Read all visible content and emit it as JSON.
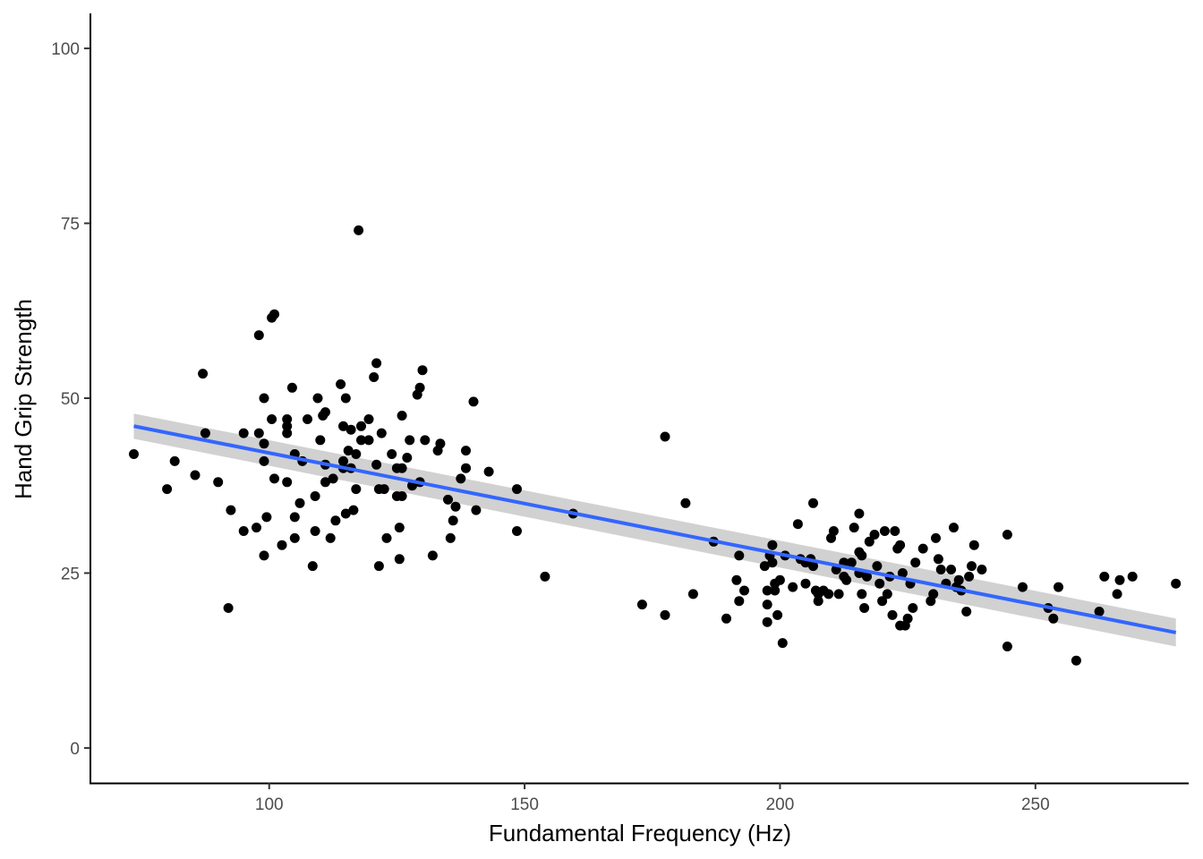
{
  "chart_data": {
    "type": "scatter",
    "title": "",
    "xlabel": "Fundamental Frequency (Hz)",
    "ylabel": "Hand Grip Strength",
    "xlim": [
      65,
      280
    ],
    "ylim": [
      -5,
      105
    ],
    "x_ticks": [
      100,
      150,
      200,
      250
    ],
    "y_ticks": [
      0,
      25,
      50,
      75,
      100
    ],
    "x_tick_labels": [
      "100",
      "150",
      "200",
      "250"
    ],
    "y_tick_labels": [
      "0",
      "25",
      "50",
      "75",
      "100"
    ],
    "grid": false,
    "legend": "none",
    "colors": {
      "points": "#000000",
      "fit_line": "#3366ff",
      "confidence_band": "#cccccc"
    },
    "points": [
      [
        73.5,
        42
      ],
      [
        80,
        37
      ],
      [
        81.5,
        41
      ],
      [
        85.5,
        39
      ],
      [
        87,
        53.5
      ],
      [
        87.5,
        45
      ],
      [
        90,
        38
      ],
      [
        92,
        20
      ],
      [
        92.5,
        34
      ],
      [
        95,
        31
      ],
      [
        95,
        45
      ],
      [
        97.5,
        31.5
      ],
      [
        98,
        45
      ],
      [
        98,
        59
      ],
      [
        99,
        43.5
      ],
      [
        99,
        41
      ],
      [
        99,
        27.5
      ],
      [
        99.5,
        33
      ],
      [
        99,
        50
      ],
      [
        100.5,
        47
      ],
      [
        100.5,
        61.5
      ],
      [
        101,
        62
      ],
      [
        101,
        38.5
      ],
      [
        102.5,
        29
      ],
      [
        103.5,
        47
      ],
      [
        103.5,
        46
      ],
      [
        103.5,
        45
      ],
      [
        103.5,
        38
      ],
      [
        104.5,
        51.5
      ],
      [
        105,
        42
      ],
      [
        105,
        33
      ],
      [
        105,
        30
      ],
      [
        106,
        35
      ],
      [
        106.5,
        41
      ],
      [
        107.5,
        47
      ],
      [
        108.5,
        26
      ],
      [
        109,
        36
      ],
      [
        109,
        31
      ],
      [
        109.5,
        50
      ],
      [
        110,
        44
      ],
      [
        110.5,
        47.5
      ],
      [
        111,
        48
      ],
      [
        111,
        40.5
      ],
      [
        111,
        38
      ],
      [
        112,
        30
      ],
      [
        112.5,
        38.5
      ],
      [
        113,
        32.5
      ],
      [
        114,
        52
      ],
      [
        114.5,
        46
      ],
      [
        114.5,
        41
      ],
      [
        114.5,
        40
      ],
      [
        115,
        50
      ],
      [
        115,
        33.5
      ],
      [
        115.5,
        42.5
      ],
      [
        116,
        45.5
      ],
      [
        116,
        40
      ],
      [
        116.5,
        34
      ],
      [
        117,
        42
      ],
      [
        117,
        37
      ],
      [
        117.5,
        74
      ],
      [
        118,
        46
      ],
      [
        118,
        44
      ],
      [
        119.5,
        47
      ],
      [
        119.5,
        44
      ],
      [
        120.5,
        53
      ],
      [
        121,
        55
      ],
      [
        121,
        40.5
      ],
      [
        121.5,
        26
      ],
      [
        121.5,
        37
      ],
      [
        122,
        45
      ],
      [
        122.5,
        37
      ],
      [
        123,
        30
      ],
      [
        124,
        42
      ],
      [
        125,
        36
      ],
      [
        125,
        40
      ],
      [
        125.5,
        31.5
      ],
      [
        125.5,
        27
      ],
      [
        126,
        40
      ],
      [
        126,
        36
      ],
      [
        126,
        47.5
      ],
      [
        127,
        41.5
      ],
      [
        127.5,
        44
      ],
      [
        128,
        37.5
      ],
      [
        129,
        50.5
      ],
      [
        129.5,
        51.5
      ],
      [
        129.5,
        38
      ],
      [
        130,
        54
      ],
      [
        130.5,
        44
      ],
      [
        132,
        27.5
      ],
      [
        133,
        42.5
      ],
      [
        133.5,
        43.5
      ],
      [
        135,
        35.5
      ],
      [
        135.5,
        30
      ],
      [
        136,
        32.5
      ],
      [
        136.5,
        34.5
      ],
      [
        137.5,
        38.5
      ],
      [
        138.5,
        42.5
      ],
      [
        138.5,
        40
      ],
      [
        140,
        49.5
      ],
      [
        140.5,
        34
      ],
      [
        143,
        39.5
      ],
      [
        148.5,
        37
      ],
      [
        148.5,
        31
      ],
      [
        154,
        24.5
      ],
      [
        159.5,
        33.5
      ],
      [
        173,
        20.5
      ],
      [
        177.5,
        19
      ],
      [
        177.5,
        44.5
      ],
      [
        181.5,
        35
      ],
      [
        183,
        22
      ],
      [
        187,
        29.5
      ],
      [
        189.5,
        18.5
      ],
      [
        191.5,
        24
      ],
      [
        192,
        27.5
      ],
      [
        192,
        21
      ],
      [
        193,
        22.5
      ],
      [
        197,
        26
      ],
      [
        197.5,
        18
      ],
      [
        197.5,
        20.5
      ],
      [
        197.5,
        22.5
      ],
      [
        198,
        27.5
      ],
      [
        198.5,
        29
      ],
      [
        198.5,
        26.5
      ],
      [
        199,
        23.5
      ],
      [
        199,
        22.5
      ],
      [
        199.5,
        19
      ],
      [
        200,
        24
      ],
      [
        200.5,
        15
      ],
      [
        201,
        27.5
      ],
      [
        202.5,
        23
      ],
      [
        203.5,
        32
      ],
      [
        204,
        27
      ],
      [
        205,
        26.5
      ],
      [
        205,
        23.5
      ],
      [
        206,
        27
      ],
      [
        206.5,
        26
      ],
      [
        206.5,
        35
      ],
      [
        207,
        22.5
      ],
      [
        207.5,
        22
      ],
      [
        207.5,
        21
      ],
      [
        208.5,
        22.5
      ],
      [
        209.5,
        22
      ],
      [
        210,
        30
      ],
      [
        210.5,
        31
      ],
      [
        211,
        25.5
      ],
      [
        211.5,
        22
      ],
      [
        212.5,
        26.5
      ],
      [
        212.5,
        24.5
      ],
      [
        213,
        24
      ],
      [
        214,
        26.5
      ],
      [
        214.5,
        31.5
      ],
      [
        215.5,
        33.5
      ],
      [
        215.5,
        28
      ],
      [
        215.5,
        25
      ],
      [
        216,
        27.5
      ],
      [
        216,
        22
      ],
      [
        216.5,
        20
      ],
      [
        217,
        24.5
      ],
      [
        217.5,
        29.5
      ],
      [
        218.5,
        30.5
      ],
      [
        219,
        26
      ],
      [
        219.5,
        23.5
      ],
      [
        220,
        21
      ],
      [
        220.5,
        31
      ],
      [
        221,
        22
      ],
      [
        221.5,
        24.5
      ],
      [
        222,
        19
      ],
      [
        222.5,
        31
      ],
      [
        223,
        28.5
      ],
      [
        223.5,
        29
      ],
      [
        223.5,
        17.5
      ],
      [
        224,
        25
      ],
      [
        224.5,
        17.5
      ],
      [
        225,
        18.5
      ],
      [
        225.5,
        23.5
      ],
      [
        226,
        20
      ],
      [
        226.5,
        26.5
      ],
      [
        228,
        28.5
      ],
      [
        229.5,
        21
      ],
      [
        230,
        22
      ],
      [
        230.5,
        30
      ],
      [
        231,
        27
      ],
      [
        231.5,
        25.5
      ],
      [
        232.5,
        23.5
      ],
      [
        233.5,
        25.5
      ],
      [
        234,
        31.5
      ],
      [
        234.5,
        23
      ],
      [
        235,
        24
      ],
      [
        235.5,
        22.5
      ],
      [
        236.5,
        19.5
      ],
      [
        237,
        24.5
      ],
      [
        237.5,
        26
      ],
      [
        238,
        29
      ],
      [
        239.5,
        25.5
      ],
      [
        244.5,
        30.5
      ],
      [
        244.5,
        14.5
      ],
      [
        247.5,
        23
      ],
      [
        252.5,
        20
      ],
      [
        253.5,
        18.5
      ],
      [
        254.5,
        23
      ],
      [
        258,
        12.5
      ],
      [
        262.5,
        19.5
      ],
      [
        263.5,
        24.5
      ],
      [
        266,
        22
      ],
      [
        266.5,
        24
      ],
      [
        269,
        24.5
      ],
      [
        277.5,
        23.5
      ]
    ],
    "fit": {
      "x": [
        73.5,
        277.5
      ],
      "y": [
        46,
        16.5
      ],
      "ci_lower": [
        44.2,
        14.5
      ],
      "ci_upper": [
        47.8,
        18.5
      ]
    }
  }
}
